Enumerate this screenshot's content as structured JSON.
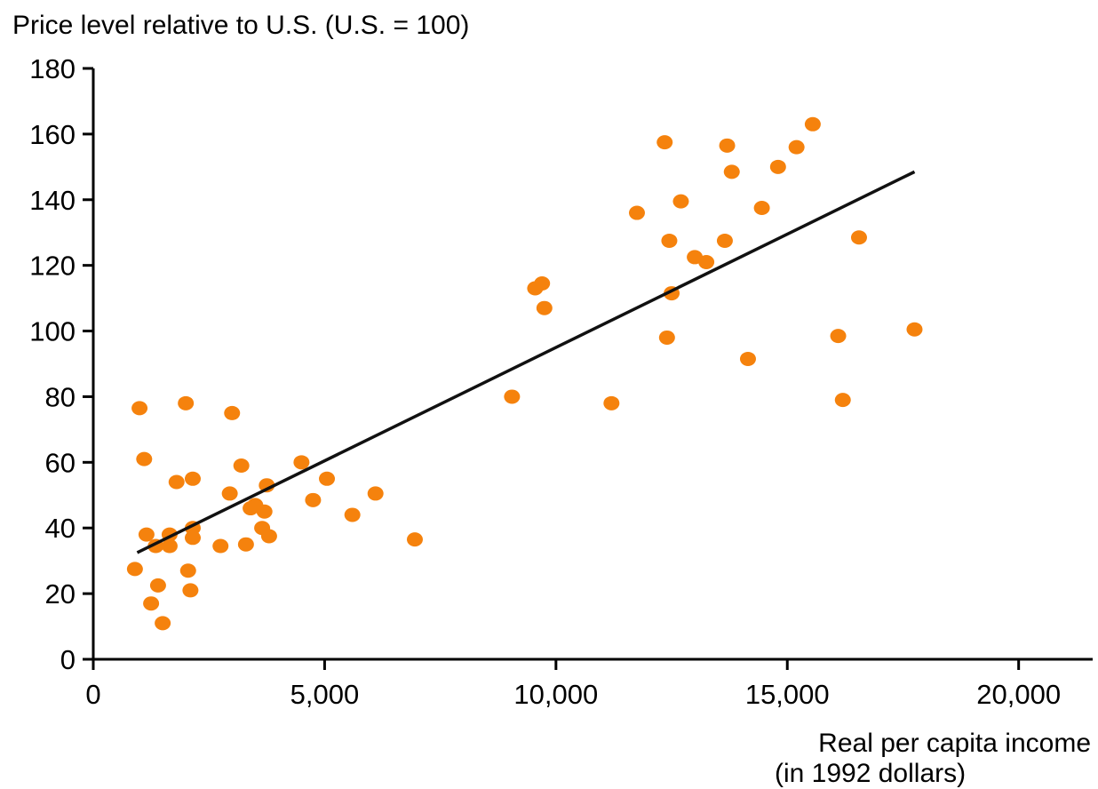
{
  "chart_data": {
    "type": "scatter",
    "title": "",
    "ylabel": "Price level relative to U.S. (U.S. = 100)",
    "xlabel_lines": [
      "Real per capita income",
      "(in 1992 dollars)"
    ],
    "xlim": [
      0,
      21600
    ],
    "ylim": [
      0,
      180
    ],
    "x_ticks": [
      {
        "value": 0,
        "label": "0"
      },
      {
        "value": 5000,
        "label": "5,000"
      },
      {
        "value": 10000,
        "label": "10,000"
      },
      {
        "value": 15000,
        "label": "15,000"
      },
      {
        "value": 20000,
        "label": "20,000"
      }
    ],
    "y_ticks": [
      {
        "value": 0,
        "label": "0"
      },
      {
        "value": 20,
        "label": "20"
      },
      {
        "value": 40,
        "label": "40"
      },
      {
        "value": 60,
        "label": "60"
      },
      {
        "value": 80,
        "label": "80"
      },
      {
        "value": 100,
        "label": "100"
      },
      {
        "value": 120,
        "label": "120"
      },
      {
        "value": 140,
        "label": "140"
      },
      {
        "value": 160,
        "label": "160"
      },
      {
        "value": 180,
        "label": "180"
      }
    ],
    "grid": false,
    "point_color": "#f5820d",
    "line_color": "#111111",
    "points": [
      [
        900,
        27.5
      ],
      [
        1000,
        76.5
      ],
      [
        1100,
        61
      ],
      [
        1150,
        38
      ],
      [
        1250,
        17
      ],
      [
        1350,
        34.5
      ],
      [
        1400,
        22.5
      ],
      [
        1500,
        11
      ],
      [
        1650,
        38
      ],
      [
        1650,
        34.5
      ],
      [
        1800,
        54
      ],
      [
        2000,
        78
      ],
      [
        2050,
        27
      ],
      [
        2100,
        21
      ],
      [
        2150,
        40
      ],
      [
        2150,
        55
      ],
      [
        2150,
        37
      ],
      [
        2750,
        34.5
      ],
      [
        2950,
        50.5
      ],
      [
        3000,
        75
      ],
      [
        3200,
        59
      ],
      [
        3300,
        35
      ],
      [
        3400,
        46
      ],
      [
        3500,
        47
      ],
      [
        3650,
        40
      ],
      [
        3700,
        45
      ],
      [
        3750,
        53
      ],
      [
        3800,
        37.5
      ],
      [
        4500,
        60
      ],
      [
        4750,
        48.5
      ],
      [
        5050,
        55
      ],
      [
        5600,
        44
      ],
      [
        6100,
        50.5
      ],
      [
        6950,
        36.5
      ],
      [
        9050,
        80
      ],
      [
        9550,
        113
      ],
      [
        9700,
        114.5
      ],
      [
        9750,
        107
      ],
      [
        11200,
        78
      ],
      [
        11750,
        136
      ],
      [
        12350,
        157.5
      ],
      [
        12400,
        98
      ],
      [
        12450,
        127.5
      ],
      [
        12500,
        111.5
      ],
      [
        12700,
        139.5
      ],
      [
        13000,
        122.5
      ],
      [
        13250,
        121
      ],
      [
        13650,
        127.5
      ],
      [
        13700,
        156.5
      ],
      [
        13800,
        148.5
      ],
      [
        14150,
        91.5
      ],
      [
        14450,
        137.5
      ],
      [
        14800,
        150
      ],
      [
        15200,
        156
      ],
      [
        15550,
        163
      ],
      [
        16100,
        98.5
      ],
      [
        16200,
        79
      ],
      [
        16550,
        128.5
      ],
      [
        17750,
        100.5
      ]
    ],
    "trend_line": {
      "x": [
        950,
        17750
      ],
      "y": [
        32.5,
        148.5
      ]
    }
  }
}
